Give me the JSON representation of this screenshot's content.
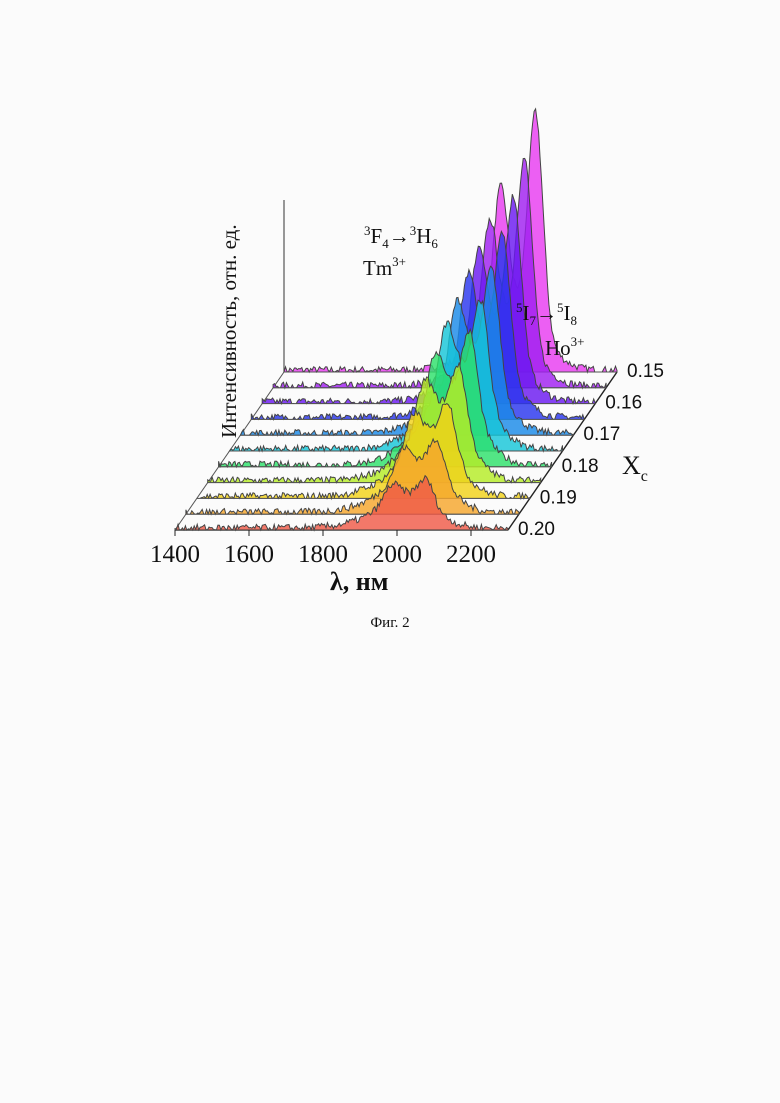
{
  "chart_data": {
    "type": "area",
    "style": "3d-waterfall",
    "xlabel": "λ, нм",
    "ylabel": "Интенсивность, отн. ед.",
    "zlabel": "X",
    "zlabel_sub": "c",
    "x_ticks": [
      1400,
      1600,
      1800,
      2000,
      2200
    ],
    "xlim": [
      1400,
      2300
    ],
    "z_ticks": [
      "0.15",
      "0.16",
      "0.17",
      "0.18",
      "0.19",
      "0.20"
    ],
    "series_count": 11,
    "series_colors": [
      "#e83cf0",
      "#a020f0",
      "#6a19f0",
      "#2a36ee",
      "#1a8ae8",
      "#16c6d8",
      "#2de06a",
      "#b4ec26",
      "#f2d218",
      "#f5a62c",
      "#ef5a48"
    ],
    "peaks": [
      {
        "name": "tm",
        "x": 2080,
        "amp": [
          1.0,
          0.84,
          0.72,
          0.6,
          0.5,
          0.42,
          0.35,
          0.28,
          0.22,
          0.16,
          0.11
        ],
        "sharp": true
      },
      {
        "name": "tm2",
        "x": 1985,
        "amp": [
          0.62,
          0.52,
          0.45,
          0.38,
          0.32,
          0.27,
          0.22,
          0.18,
          0.14,
          0.1,
          0.07
        ],
        "sharp": true
      },
      {
        "name": "ho",
        "x": 2030,
        "amp": [
          0.3,
          0.32,
          0.34,
          0.36,
          0.37,
          0.38,
          0.37,
          0.35,
          0.3,
          0.24,
          0.16
        ],
        "sharp": false
      }
    ],
    "annotations": {
      "tm_transition": {
        "sup1": "3",
        "a": "F",
        "sub1": "4",
        "arrow": "→",
        "sup2": "3",
        "b": "H",
        "sub2": "6"
      },
      "tm_ion": {
        "base": "Tm",
        "sup": "3+"
      },
      "ho_transition": {
        "sup1": "5",
        "a": "I",
        "sub1": "7",
        "arrow": "→",
        "sup2": "5",
        "b": "I",
        "sub2": "8"
      },
      "ho_ion": {
        "base": "Ho",
        "sup": "3+"
      }
    }
  },
  "caption": "Фиг. 2"
}
